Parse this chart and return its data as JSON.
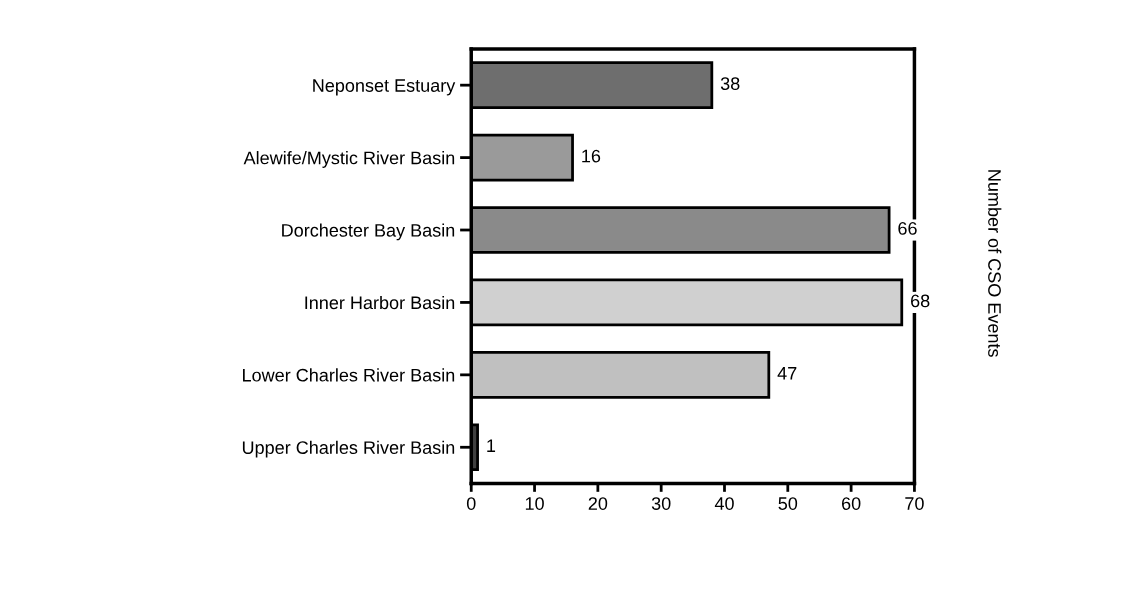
{
  "chart_data": {
    "type": "bar",
    "orientation": "horizontal",
    "ylabel": "Number of CSO Events",
    "categories": [
      "Neponset Estuary",
      "Alewife/Mystic River Basin",
      "Dorchester Bay Basin",
      "Inner Harbor Basin",
      "Lower Charles River Basin",
      "Upper Charles River Basin"
    ],
    "values": [
      38,
      16,
      66,
      68,
      47,
      1
    ],
    "colors": [
      "#6e6e6e",
      "#9a9a9a",
      "#8a8a8a",
      "#d0d0d0",
      "#c0c0c0",
      "#404040"
    ],
    "xlim": [
      0,
      70
    ],
    "xticks": [
      0,
      10,
      20,
      30,
      40,
      50,
      60,
      70
    ],
    "data_labels": true,
    "grid": false
  }
}
